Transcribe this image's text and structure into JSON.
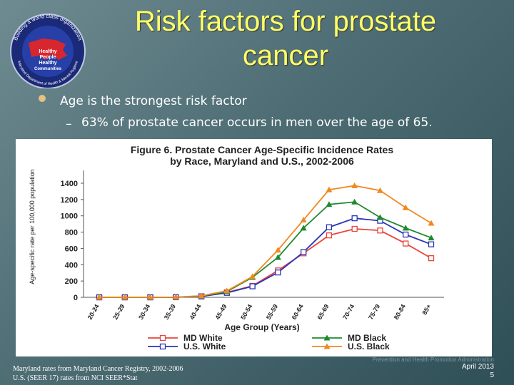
{
  "slide": {
    "title_line1": "Risk factors for prostate",
    "title_line2": "cancer",
    "bullet_1": "Age is the strongest risk factor",
    "sub_bullet_dash": "–",
    "sub_bullet_1": "63% of prostate cancer occurs in men over the age of 65.",
    "source_line1": "Maryland rates from Maryland Cancer Registry, 2002-2006",
    "source_line2": "U.S. (SEER 17) rates from NCI SEER*Stat",
    "credit_text": "Prevention and Health Promotion Administration",
    "date": "April 2013",
    "page_number": "5"
  },
  "logo": {
    "ring_text": "Building a world class organization",
    "lower_text": "Maryland Department of Health & Mental Hygiene",
    "line1": "Healthy",
    "line2": "People",
    "line3": "Healthy",
    "line4": "Communities"
  },
  "chart_data": {
    "type": "line",
    "title_line1": "Figure 6. Prostate Cancer Age-Specific Incidence Rates",
    "title_line2": "by Race, Maryland and U.S., 2002-2006",
    "xlabel": "Age Group (Years)",
    "ylabel": "Age-specific rate per 100,000 population",
    "ylim": [
      0,
      1400
    ],
    "yticks": [
      0,
      200,
      400,
      600,
      800,
      1000,
      1200,
      1400
    ],
    "categories": [
      "20-24",
      "25-29",
      "30-34",
      "35-39",
      "40-44",
      "45-49",
      "50-54",
      "55-59",
      "60-64",
      "65-69",
      "70-74",
      "75-79",
      "80-84",
      "85+"
    ],
    "series": [
      {
        "name": "MD White",
        "color": "#e8453c",
        "marker": "square",
        "values": [
          0,
          0,
          0,
          1,
          12,
          60,
          140,
          330,
          540,
          760,
          840,
          820,
          660,
          480
        ]
      },
      {
        "name": "U.S. White",
        "color": "#2a35b8",
        "marker": "square",
        "values": [
          0,
          0,
          0,
          1,
          11,
          55,
          135,
          305,
          555,
          860,
          970,
          940,
          770,
          650
        ]
      },
      {
        "name": "MD Black",
        "color": "#1e8a2e",
        "marker": "triangle",
        "values": [
          0,
          0,
          0,
          2,
          15,
          70,
          245,
          490,
          850,
          1140,
          1170,
          980,
          850,
          730
        ]
      },
      {
        "name": "U.S. Black",
        "color": "#f08a20",
        "marker": "triangle",
        "values": [
          0,
          0,
          0,
          2,
          18,
          80,
          255,
          580,
          950,
          1320,
          1370,
          1310,
          1100,
          910
        ]
      }
    ],
    "legend": {
      "position": "bottom"
    }
  }
}
